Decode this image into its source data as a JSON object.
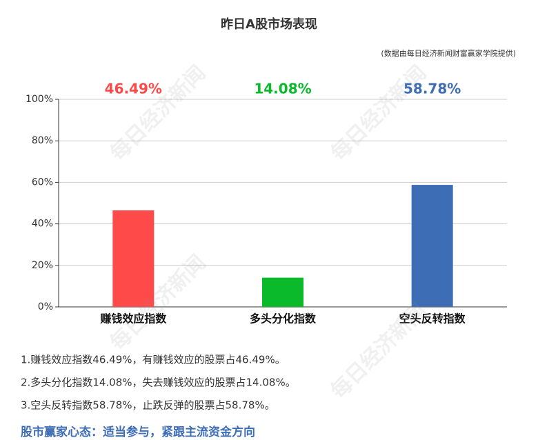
{
  "chart_data": {
    "type": "bar",
    "title": "昨日A股市场表现",
    "subtitle": "(数据由每日经济新闻财富赢家学院提供)",
    "categories": [
      "赚钱效应指数",
      "多头分化指数",
      "空头反转指数"
    ],
    "values": [
      46.49,
      14.08,
      58.78
    ],
    "value_labels": [
      "46.49%",
      "14.08%",
      "58.78%"
    ],
    "colors": [
      "#ff4a4a",
      "#0aba2a",
      "#3d6db5"
    ],
    "ylim": [
      0,
      100
    ],
    "yticks": [
      {
        "value": 0,
        "label": "0%"
      },
      {
        "value": 20,
        "label": "20%"
      },
      {
        "value": 40,
        "label": "40%"
      },
      {
        "value": 60,
        "label": "60%"
      },
      {
        "value": 80,
        "label": "80%"
      },
      {
        "value": 100,
        "label": "100%"
      }
    ],
    "grid": true
  },
  "notes": [
    "1.赚钱效应指数46.49%，有赚钱效应的股票占46.49%。",
    "2.多头分化指数14.08%，失去赚钱效应的股票占14.08%。",
    "3.空头反转指数58.78%，止跌反弹的股票占58.78%。"
  ],
  "headline": "股市赢家心态：适当参与，紧跟主流资金方向",
  "watermark": "每日经济新闻"
}
